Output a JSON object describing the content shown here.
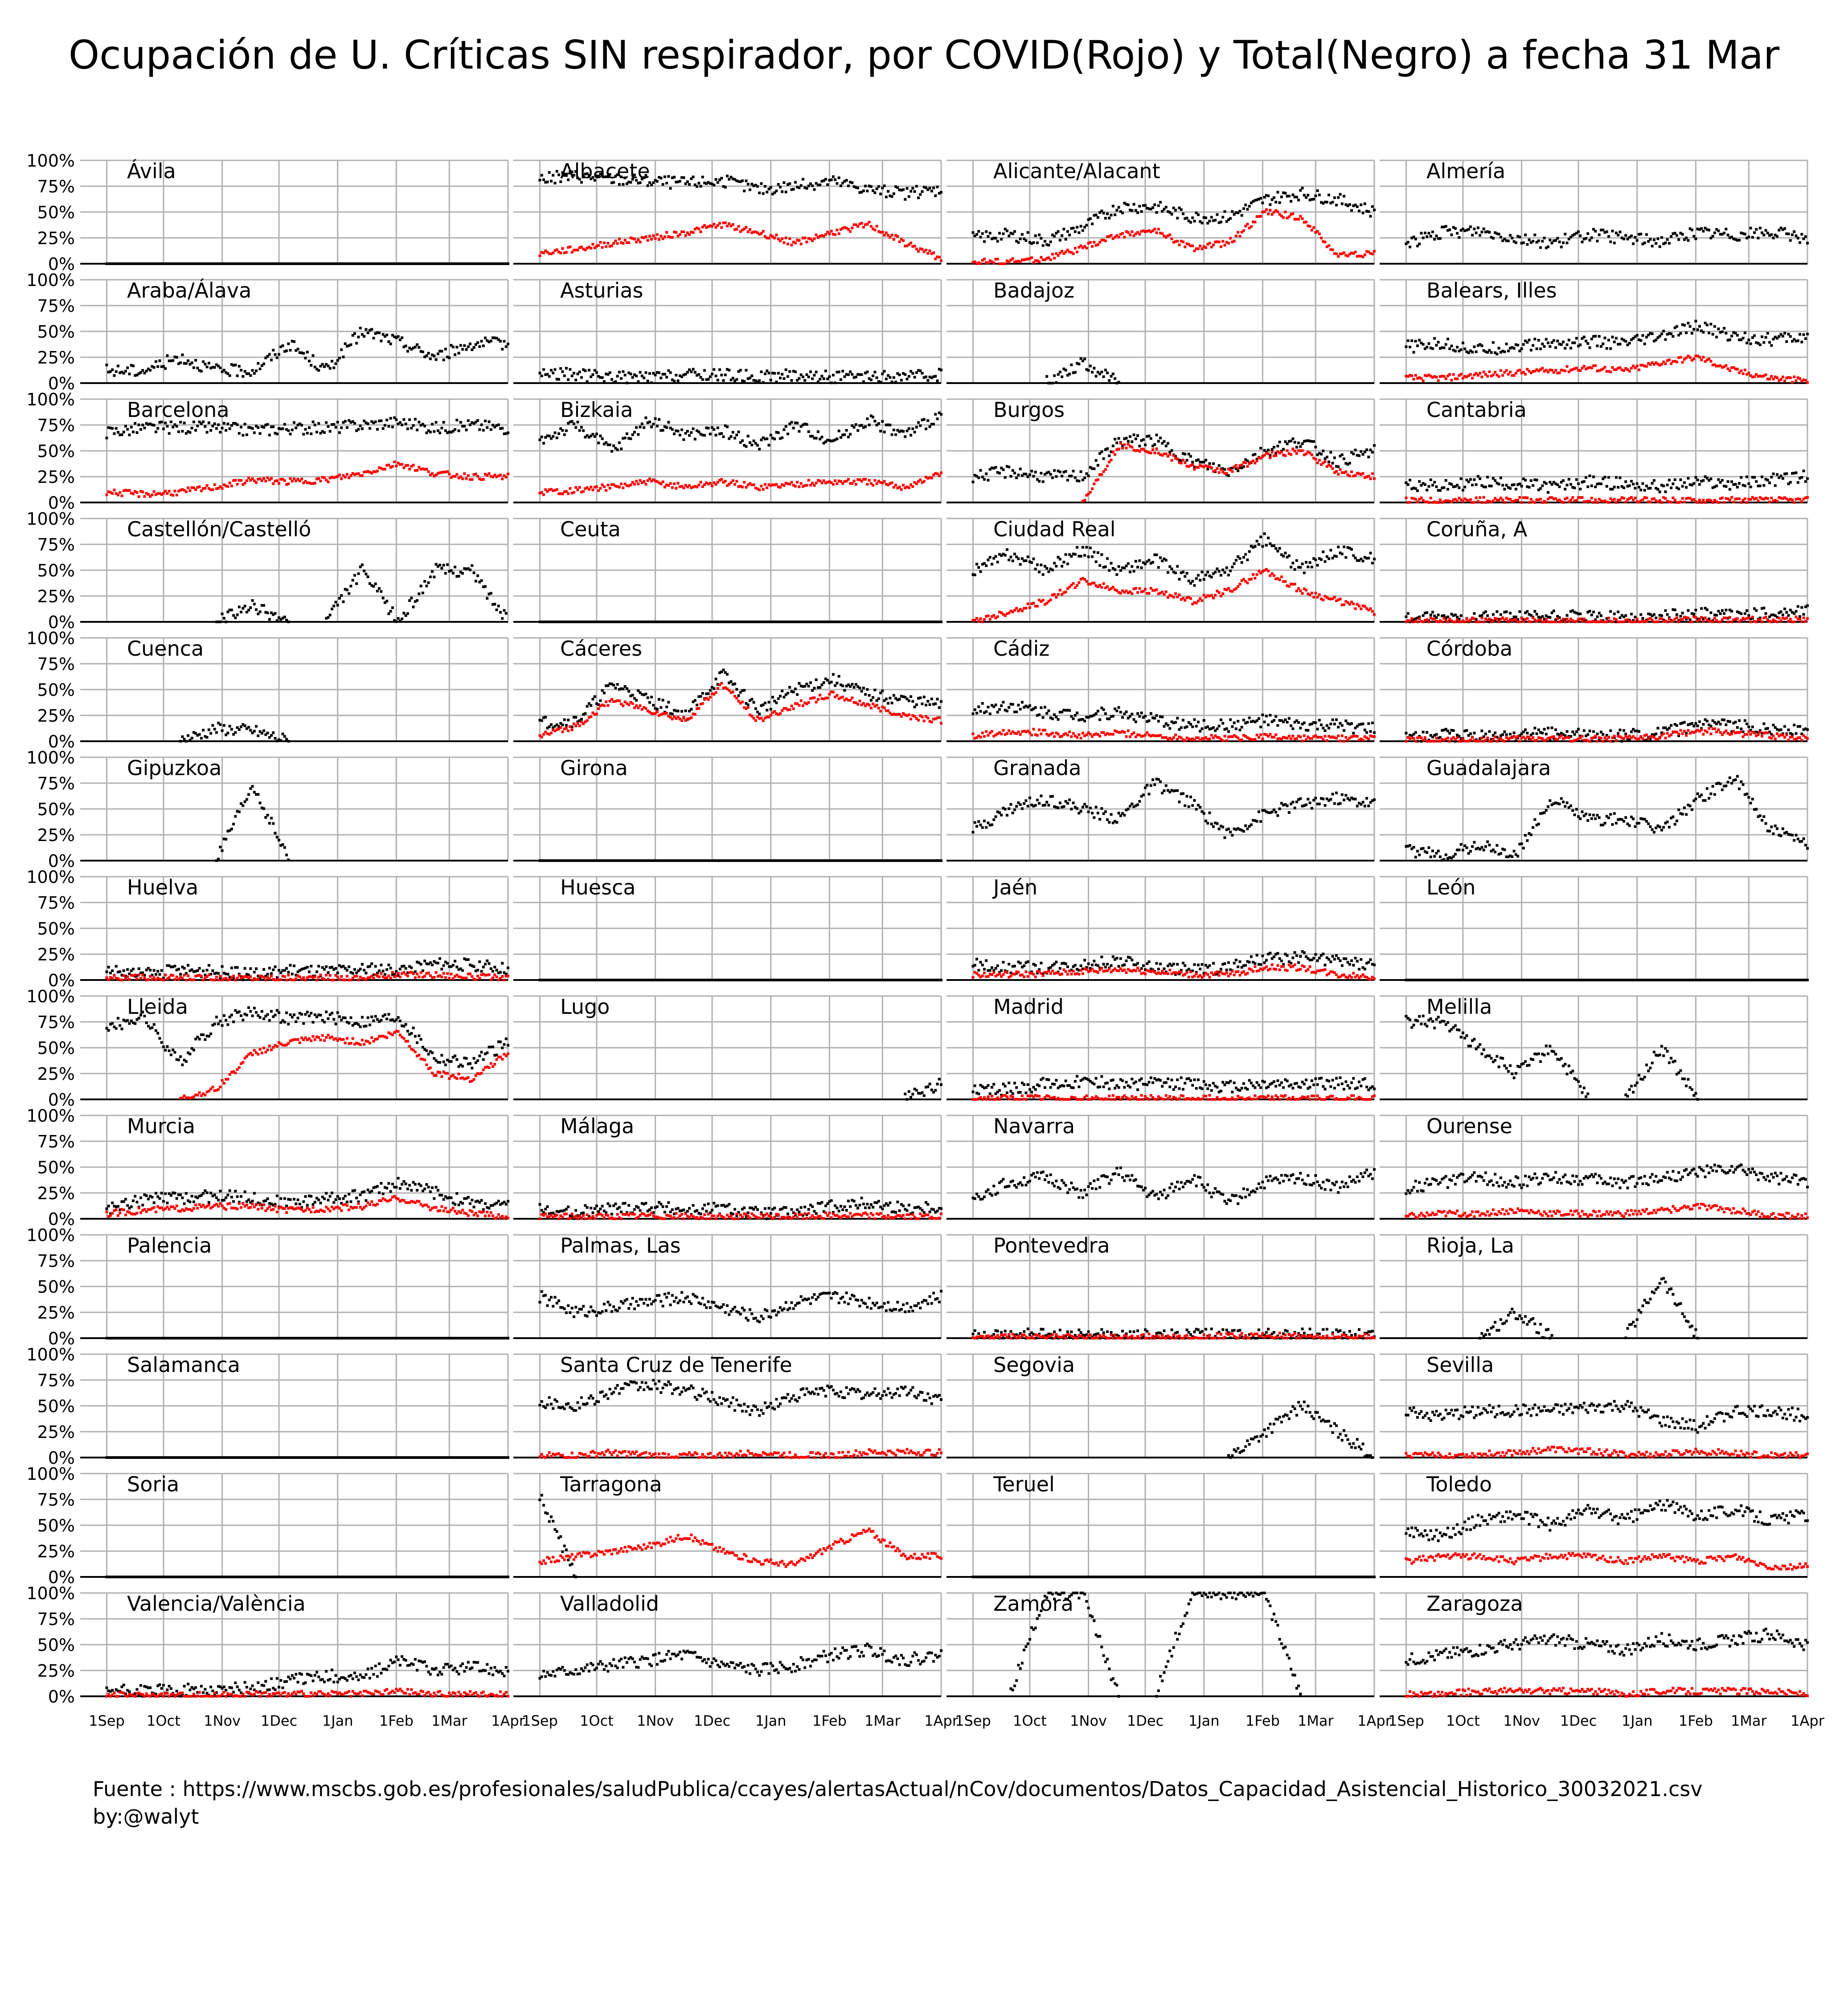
{
  "title": "Ocupación de U. Críticas SIN respirador, por COVID(Rojo) y Total(Negro) a fecha 31 Mar",
  "footer": {
    "source": "Fuente : https://www.mscbs.gob.es/profesionales/saludPublica/ccayes/alertasActual/nCov/documentos/Datos_Capacidad_Asistencial_Historico_30032021.csv",
    "author": "by:@walyt"
  },
  "chart_data": {
    "type": "scatter",
    "layout": "small-multiples 15 rows x 4 columns",
    "series": [
      {
        "name": "",
        "color": "#000000"
      },
      {
        "name": "",
        "color": "#ff0000"
      }
    ],
    "y_tick_labels": [
      "100%",
      "75%",
      "50%",
      "25%",
      "0%"
    ],
    "ylim": [
      0,
      1
    ],
    "x_tick_labels": [
      "1Sep",
      "1Oct",
      "1Nov",
      "1Dec",
      "1Jan",
      "1Feb",
      "1Mar",
      "1Apr"
    ],
    "x_ticks_days": [
      0,
      30,
      61,
      91,
      122,
      153,
      181,
      212
    ],
    "x_range_days": [
      -14,
      212
    ],
    "grid": true,
    "panels": [
      {
        "name": "Ávila",
        "total": [
          0
        ],
        "covid": [
          0
        ]
      },
      {
        "name": "Albacete",
        "total": [
          0.82,
          0.85,
          0.82,
          0.8,
          0.78,
          0.8,
          0.72,
          0.75,
          0.8,
          0.72,
          0.68,
          0.72
        ],
        "covid": [
          0.1,
          0.14,
          0.2,
          0.25,
          0.3,
          0.38,
          0.3,
          0.2,
          0.3,
          0.38,
          0.2,
          0.05
        ]
      },
      {
        "name": "Alicante/Alacant",
        "total": [
          0.25,
          0.28,
          0.22,
          0.35,
          0.55,
          0.55,
          0.45,
          0.45,
          0.62,
          0.68,
          0.62,
          0.5
        ],
        "covid": [
          0.02,
          0.02,
          0.05,
          0.15,
          0.28,
          0.32,
          0.15,
          0.2,
          0.5,
          0.45,
          0.08,
          0.1
        ]
      },
      {
        "name": "Almería",
        "total": [
          0.2,
          0.3,
          0.32,
          0.25,
          0.2,
          0.28,
          0.25,
          0.22,
          0.3,
          0.28,
          0.3,
          0.25
        ],
        "covid": [
          0
        ]
      },
      {
        "name": "Araba/Álava",
        "total": [
          0.12,
          0.12,
          0.25,
          0.12,
          0.12,
          0.38,
          0.12,
          0.5,
          0.4,
          0.25,
          0.38,
          0.38
        ],
        "covid": [
          0
        ]
      },
      {
        "name": "Asturias",
        "total": [
          0.1,
          0.08,
          0.06,
          0.05,
          0.08,
          0.08,
          0.06,
          0.08,
          0.06,
          0.05,
          0.06,
          0.08
        ],
        "covid": [
          0
        ]
      },
      {
        "name": "Badajoz",
        "total": [
          0,
          0,
          0,
          0.2,
          0,
          0,
          0,
          0,
          0,
          0,
          0,
          0
        ],
        "covid": [
          0
        ]
      },
      {
        "name": "Balears, Illes",
        "total": [
          0.35,
          0.38,
          0.32,
          0.36,
          0.38,
          0.4,
          0.38,
          0.45,
          0.55,
          0.45,
          0.42,
          0.45
        ],
        "covid": [
          0.05,
          0.05,
          0.08,
          0.1,
          0.12,
          0.15,
          0.12,
          0.2,
          0.25,
          0.12,
          0.05,
          0.02
        ]
      },
      {
        "name": "Barcelona",
        "total": [
          0.68,
          0.72,
          0.73,
          0.72,
          0.7,
          0.72,
          0.72,
          0.75,
          0.78,
          0.72,
          0.75,
          0.72
        ],
        "covid": [
          0.1,
          0.08,
          0.1,
          0.15,
          0.22,
          0.2,
          0.22,
          0.28,
          0.38,
          0.28,
          0.25,
          0.25
        ]
      },
      {
        "name": "Bizkaia",
        "total": [
          0.6,
          0.75,
          0.5,
          0.8,
          0.65,
          0.7,
          0.55,
          0.75,
          0.6,
          0.8,
          0.65,
          0.85
        ],
        "covid": [
          0.1,
          0.12,
          0.15,
          0.2,
          0.15,
          0.2,
          0.15,
          0.18,
          0.2,
          0.2,
          0.15,
          0.28
        ]
      },
      {
        "name": "Burgos",
        "total": [
          0.25,
          0.3,
          0.25,
          0.25,
          0.6,
          0.6,
          0.4,
          0.3,
          0.5,
          0.6,
          0.4,
          0.5
        ],
        "covid": [
          0,
          0,
          0,
          0,
          0.55,
          0.5,
          0.35,
          0.3,
          0.45,
          0.5,
          0.3,
          0.25
        ]
      },
      {
        "name": "Cantabria",
        "total": [
          0.18,
          0.15,
          0.2,
          0.18,
          0.15,
          0.2,
          0.18,
          0.15,
          0.2,
          0.18,
          0.22,
          0.25
        ],
        "covid": [
          0.02,
          0.02,
          0.02,
          0.02,
          0.02,
          0.02,
          0.02,
          0.02,
          0.02,
          0.02,
          0.02,
          0.02
        ]
      },
      {
        "name": "Castellón/Castelló",
        "total": [
          0,
          0,
          0,
          0,
          0.15,
          0,
          0,
          0.5,
          0,
          0.5,
          0.5,
          0
        ],
        "covid": [
          0
        ]
      },
      {
        "name": "Ceuta",
        "total": [
          0
        ],
        "covid": [
          0
        ]
      },
      {
        "name": "Ciudad Real",
        "total": [
          0.5,
          0.65,
          0.5,
          0.7,
          0.5,
          0.6,
          0.4,
          0.5,
          0.8,
          0.5,
          0.7,
          0.6
        ],
        "covid": [
          0,
          0.1,
          0.2,
          0.4,
          0.3,
          0.3,
          0.2,
          0.3,
          0.5,
          0.3,
          0.2,
          0.1
        ]
      },
      {
        "name": "Coruña, A",
        "total": [
          0.03,
          0.04,
          0.05,
          0.04,
          0.05,
          0.05,
          0.04,
          0.05,
          0.08,
          0.06,
          0.08,
          0.1
        ],
        "covid": [
          0.01,
          0.01,
          0.01,
          0.01,
          0.01,
          0.01,
          0.01,
          0.01,
          0.02,
          0.02,
          0.02,
          0.02
        ]
      },
      {
        "name": "Cuenca",
        "total": [
          0,
          0,
          0,
          0.12,
          0.1,
          0,
          0,
          0,
          0,
          0,
          0,
          0
        ],
        "covid": [
          0
        ]
      },
      {
        "name": "Cáceres",
        "total": [
          0.18,
          0.2,
          0.55,
          0.4,
          0.25,
          0.65,
          0.3,
          0.5,
          0.6,
          0.45,
          0.4,
          0.35
        ],
        "covid": [
          0.05,
          0.15,
          0.4,
          0.3,
          0.2,
          0.55,
          0.2,
          0.35,
          0.45,
          0.35,
          0.25,
          0.2
        ]
      },
      {
        "name": "Cádiz",
        "total": [
          0.3,
          0.35,
          0.28,
          0.25,
          0.28,
          0.2,
          0.15,
          0.15,
          0.2,
          0.15,
          0.15,
          0.12
        ],
        "covid": [
          0.05,
          0.1,
          0.08,
          0.05,
          0.08,
          0.05,
          0.03,
          0.03,
          0.05,
          0.03,
          0.03,
          0.03
        ]
      },
      {
        "name": "Córdoba",
        "total": [
          0.05,
          0.06,
          0.04,
          0.06,
          0.08,
          0.05,
          0.05,
          0.08,
          0.15,
          0.15,
          0.12,
          0.1
        ],
        "covid": [
          0.01,
          0.01,
          0.01,
          0.02,
          0.03,
          0.02,
          0.02,
          0.05,
          0.1,
          0.08,
          0.05,
          0.03
        ]
      },
      {
        "name": "Gipuzkoa",
        "total": [
          0,
          0,
          0,
          0,
          0.73,
          0,
          0,
          0,
          0,
          0,
          0,
          0
        ],
        "covid": [
          0
        ]
      },
      {
        "name": "Girona",
        "total": [
          0
        ],
        "covid": [
          0
        ]
      },
      {
        "name": "Granada",
        "total": [
          0.3,
          0.5,
          0.6,
          0.5,
          0.4,
          0.75,
          0.55,
          0.25,
          0.45,
          0.55,
          0.6,
          0.55
        ],
        "covid": [
          0
        ]
      },
      {
        "name": "Guadalajara",
        "total": [
          0.1,
          0.05,
          0.15,
          0.05,
          0.6,
          0.4,
          0.4,
          0.3,
          0.6,
          0.8,
          0.3,
          0.15
        ],
        "covid": [
          0
        ]
      },
      {
        "name": "Huelva",
        "total": [
          0.1,
          0.05,
          0.1,
          0.08,
          0.05,
          0.1,
          0.08,
          0.1,
          0.1,
          0.15,
          0.15,
          0.1
        ],
        "covid": [
          0.02,
          0.02,
          0.02,
          0.02,
          0.02,
          0.02,
          0.02,
          0.02,
          0.05,
          0.05,
          0.03,
          0.02
        ]
      },
      {
        "name": "Huesca",
        "total": [
          0
        ],
        "covid": [
          0
        ]
      },
      {
        "name": "Jaén",
        "total": [
          0.15,
          0.12,
          0.12,
          0.15,
          0.18,
          0.12,
          0.1,
          0.12,
          0.2,
          0.22,
          0.18,
          0.15
        ],
        "covid": [
          0.05,
          0.05,
          0.06,
          0.08,
          0.1,
          0.08,
          0.05,
          0.05,
          0.12,
          0.12,
          0.05,
          0.03
        ]
      },
      {
        "name": "León",
        "total": [
          0
        ],
        "covid": [
          0
        ]
      },
      {
        "name": "Lleida",
        "total": [
          0.7,
          0.8,
          0.35,
          0.75,
          0.85,
          0.78,
          0.8,
          0.75,
          0.8,
          0.4,
          0.35,
          0.55
        ],
        "covid": [
          0,
          0,
          0,
          0.1,
          0.45,
          0.55,
          0.6,
          0.55,
          0.65,
          0.25,
          0.2,
          0.45
        ]
      },
      {
        "name": "Lugo",
        "total": [
          0,
          0,
          0,
          0,
          0,
          0,
          0,
          0,
          0,
          0,
          0,
          0.15
        ],
        "covid": [
          0
        ]
      },
      {
        "name": "Madrid",
        "total": [
          0.08,
          0.1,
          0.15,
          0.18,
          0.15,
          0.15,
          0.15,
          0.12,
          0.15,
          0.15,
          0.15,
          0.15
        ],
        "covid": [
          0.01,
          0.01,
          0.01,
          0.01,
          0.01,
          0.01,
          0.01,
          0.01,
          0.01,
          0.01,
          0.01,
          0.01
        ]
      },
      {
        "name": "Melilla",
        "total": [
          0.75,
          0.75,
          0.5,
          0.25,
          0.5,
          0,
          0,
          0.5,
          0,
          0,
          0,
          0
        ],
        "covid": [
          0
        ]
      },
      {
        "name": "Murcia",
        "total": [
          0.1,
          0.18,
          0.2,
          0.22,
          0.2,
          0.15,
          0.2,
          0.22,
          0.35,
          0.25,
          0.15,
          0.12
        ],
        "covid": [
          0.05,
          0.08,
          0.1,
          0.12,
          0.12,
          0.08,
          0.1,
          0.12,
          0.2,
          0.1,
          0.05,
          0.02
        ]
      },
      {
        "name": "Málaga",
        "total": [
          0.08,
          0.06,
          0.1,
          0.12,
          0.08,
          0.1,
          0.05,
          0.06,
          0.12,
          0.15,
          0.1,
          0.12
        ],
        "covid": [
          0.02,
          0.02,
          0.02,
          0.03,
          0.02,
          0.02,
          0.02,
          0.02,
          0.03,
          0.03,
          0.02,
          0.02
        ]
      },
      {
        "name": "Navarra",
        "total": [
          0.2,
          0.35,
          0.4,
          0.25,
          0.45,
          0.2,
          0.4,
          0.15,
          0.35,
          0.4,
          0.3,
          0.45
        ],
        "covid": [
          0
        ]
      },
      {
        "name": "Ourense",
        "total": [
          0.3,
          0.35,
          0.4,
          0.35,
          0.4,
          0.38,
          0.35,
          0.4,
          0.45,
          0.48,
          0.4,
          0.35
        ],
        "covid": [
          0.02,
          0.05,
          0.05,
          0.08,
          0.05,
          0.05,
          0.05,
          0.08,
          0.12,
          0.08,
          0.03,
          0.02
        ]
      },
      {
        "name": "Palencia",
        "total": [
          0
        ],
        "covid": [
          0
        ]
      },
      {
        "name": "Palmas, Las",
        "total": [
          0.4,
          0.25,
          0.3,
          0.35,
          0.4,
          0.3,
          0.2,
          0.35,
          0.4,
          0.35,
          0.3,
          0.4
        ],
        "covid": [
          0
        ]
      },
      {
        "name": "Pontevedra",
        "total": [
          0.03,
          0.03,
          0.03,
          0.02,
          0.03,
          0.02,
          0.03,
          0.03,
          0.03,
          0.03,
          0.03,
          0.03
        ],
        "covid": [
          0.01,
          0.01,
          0.01,
          0.01,
          0.01,
          0.01,
          0.01,
          0.02,
          0.02,
          0.02,
          0.01,
          0.01
        ]
      },
      {
        "name": "Rioja, La",
        "total": [
          0,
          0,
          0,
          0.25,
          0,
          0,
          0,
          0.58,
          0,
          0,
          0,
          0
        ],
        "covid": [
          0
        ]
      },
      {
        "name": "Salamanca",
        "total": [
          0
        ],
        "covid": [
          0
        ]
      },
      {
        "name": "Santa Cruz de Tenerife",
        "total": [
          0.55,
          0.5,
          0.65,
          0.7,
          0.65,
          0.55,
          0.45,
          0.6,
          0.65,
          0.6,
          0.65,
          0.55
        ],
        "covid": [
          0.02,
          0.02,
          0.05,
          0.02,
          0.02,
          0.02,
          0.05,
          0.02,
          0.02,
          0.05,
          0.05,
          0.05
        ]
      },
      {
        "name": "Segovia",
        "total": [
          0,
          0,
          0,
          0,
          0,
          0,
          0,
          0,
          0.25,
          0.5,
          0.25,
          0
        ],
        "covid": [
          0
        ]
      },
      {
        "name": "Sevilla",
        "total": [
          0.45,
          0.4,
          0.45,
          0.45,
          0.45,
          0.48,
          0.5,
          0.35,
          0.3,
          0.45,
          0.45,
          0.4
        ],
        "covid": [
          0.02,
          0.02,
          0.03,
          0.05,
          0.08,
          0.06,
          0.03,
          0.03,
          0.06,
          0.04,
          0.02,
          0.02
        ]
      },
      {
        "name": "Soria",
        "total": [
          0
        ],
        "covid": [
          0
        ]
      },
      {
        "name": "Tarragona",
        "total": [
          0.78,
          0,
          0,
          0,
          0,
          0,
          0,
          0,
          0,
          0,
          0,
          0
        ],
        "covid": [
          0.15,
          0.2,
          0.25,
          0.3,
          0.4,
          0.25,
          0.15,
          0.12,
          0.3,
          0.45,
          0.2,
          0.2
        ]
      },
      {
        "name": "Teruel",
        "total": [
          0,
          0,
          0,
          0,
          0,
          0,
          0,
          0,
          0,
          0,
          0,
          0
        ],
        "covid": [
          0
        ]
      },
      {
        "name": "Toledo",
        "total": [
          0.45,
          0.4,
          0.55,
          0.6,
          0.5,
          0.65,
          0.55,
          0.7,
          0.6,
          0.65,
          0.55,
          0.6
        ],
        "covid": [
          0.15,
          0.2,
          0.2,
          0.15,
          0.2,
          0.2,
          0.15,
          0.2,
          0.15,
          0.2,
          0.1,
          0.1
        ]
      },
      {
        "name": "Valencia/València",
        "total": [
          0.05,
          0.05,
          0.06,
          0.06,
          0.08,
          0.15,
          0.2,
          0.18,
          0.35,
          0.25,
          0.28,
          0.25
        ],
        "covid": [
          0.01,
          0.01,
          0.01,
          0.01,
          0.02,
          0.02,
          0.02,
          0.02,
          0.05,
          0.02,
          0.02,
          0.02
        ]
      },
      {
        "name": "Valladolid",
        "total": [
          0.2,
          0.25,
          0.3,
          0.35,
          0.4,
          0.3,
          0.25,
          0.3,
          0.4,
          0.45,
          0.35,
          0.4
        ],
        "covid": [
          0
        ]
      },
      {
        "name": "Zamora",
        "total": [
          0,
          0,
          1,
          1,
          0,
          0,
          1,
          1,
          1,
          0,
          0,
          0
        ],
        "covid": [
          0
        ]
      },
      {
        "name": "Zaragoza",
        "total": [
          0.35,
          0.4,
          0.45,
          0.5,
          0.55,
          0.5,
          0.45,
          0.55,
          0.5,
          0.55,
          0.6,
          0.5
        ],
        "covid": [
          0.02,
          0.02,
          0.05,
          0.05,
          0.05,
          0.05,
          0.02,
          0.05,
          0.05,
          0.05,
          0.05,
          0.02
        ]
      }
    ]
  }
}
